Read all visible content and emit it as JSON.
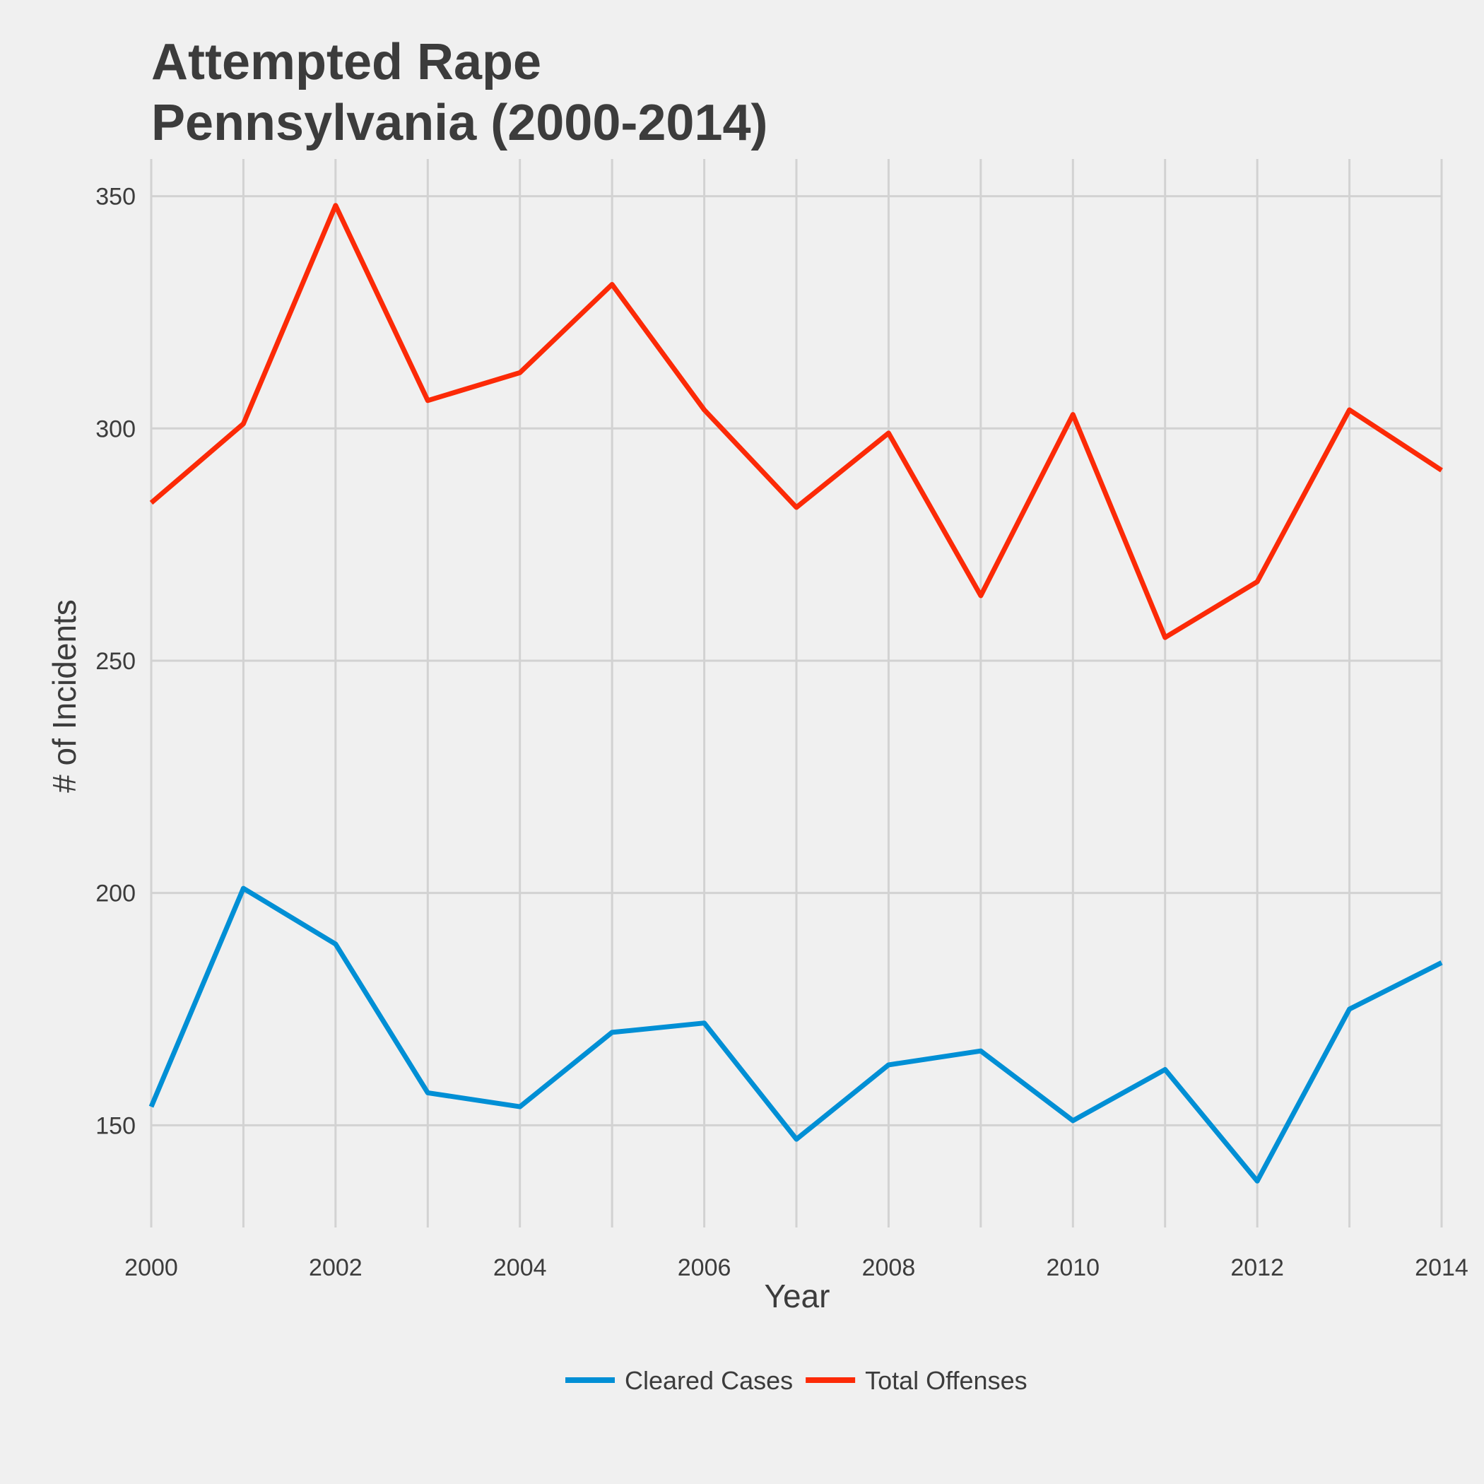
{
  "chart_data": {
    "type": "line",
    "title": [
      "Attempted Rape",
      "Pennsylvania (2000-2014)"
    ],
    "xlabel": "Year",
    "ylabel": "# of Incidents",
    "x": [
      2000,
      2001,
      2002,
      2003,
      2004,
      2005,
      2006,
      2007,
      2008,
      2009,
      2010,
      2011,
      2012,
      2013,
      2014
    ],
    "xlim": [
      2000,
      2014
    ],
    "ylim": [
      128,
      358
    ],
    "x_ticks": [
      2000,
      2002,
      2004,
      2006,
      2008,
      2010,
      2012,
      2014
    ],
    "y_ticks": [
      150,
      200,
      250,
      300,
      350
    ],
    "grid": true,
    "legend_position": "bottom",
    "series": [
      {
        "name": "Cleared Cases",
        "color": "#008fd5",
        "values": [
          154,
          201,
          189,
          157,
          154,
          170,
          172,
          147,
          163,
          166,
          151,
          162,
          138,
          175,
          185
        ]
      },
      {
        "name": "Total Offenses",
        "color": "#fc2a07",
        "values": [
          284,
          301,
          348,
          306,
          312,
          331,
          304,
          283,
          299,
          264,
          303,
          255,
          267,
          304,
          291
        ]
      }
    ]
  }
}
